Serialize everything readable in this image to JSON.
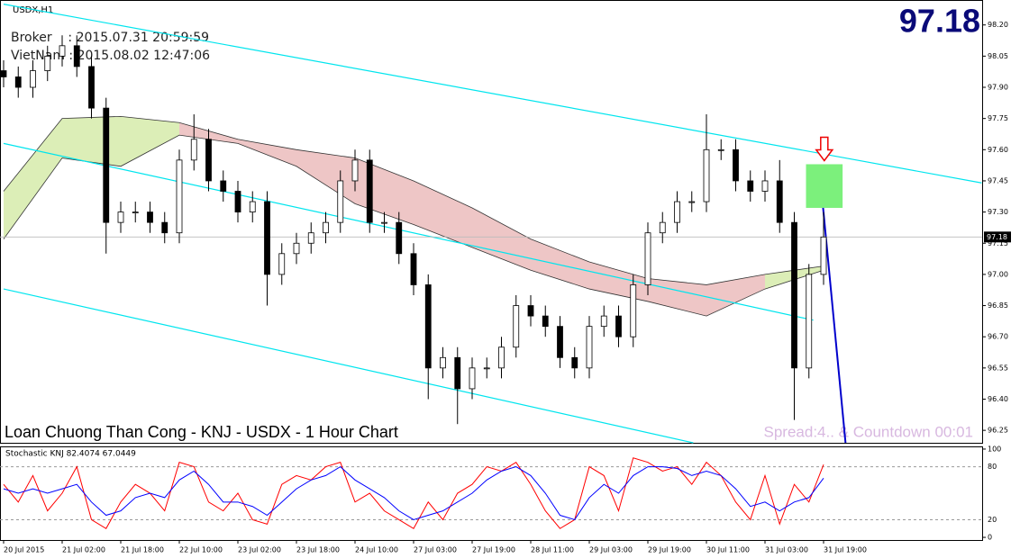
{
  "chart_data": {
    "type": "candlestick",
    "symbol": "USDX,H1",
    "broker_time": "Broker    : 2015.07.31 20:59:59",
    "local_time": "VietNam : 2015.08.02 12:47:06",
    "last_price": 97.18,
    "footer": "Loan Chuong Than Cong - KNJ - USDX - 1 Hour Chart",
    "spread_text": "Spread:4.. & Countdown 00:01",
    "up_color": "#ffffff",
    "down_color": "#000000",
    "wick_color": "#000000",
    "categories": [
      "20 Jul 2015",
      null,
      null,
      null,
      "21 Jul 02:00",
      null,
      null,
      null,
      "21 Jul 18:00",
      null,
      null,
      null,
      "22 Jul 10:00",
      null,
      null,
      null,
      "23 Jul 02:00",
      null,
      null,
      null,
      "23 Jul 18:00",
      null,
      null,
      null,
      "24 Jul 10:00",
      null,
      null,
      null,
      "27 Jul 03:00",
      null,
      null,
      null,
      "27 Jul 19:00",
      null,
      null,
      null,
      "28 Jul 11:00",
      null,
      null,
      null,
      "29 Jul 03:00",
      null,
      null,
      null,
      "29 Jul 19:00",
      null,
      null,
      null,
      "30 Jul 11:00",
      null,
      null,
      null,
      "31 Jul 03:00",
      null,
      null,
      null,
      "31 Jul 19:00"
    ],
    "open": [
      97.98,
      97.95,
      97.9,
      97.98,
      98.05,
      98.1,
      98.0,
      97.8,
      97.25,
      97.3,
      97.3,
      97.25,
      97.2,
      97.55,
      97.65,
      97.45,
      97.4,
      97.3,
      97.35,
      97.0,
      97.1,
      97.15,
      97.2,
      97.25,
      97.45,
      97.55,
      97.25,
      97.25,
      97.1,
      96.95,
      96.55,
      96.6,
      96.45,
      96.55,
      96.55,
      96.65,
      96.85,
      96.8,
      96.75,
      96.6,
      96.55,
      96.75,
      96.8,
      96.7,
      96.95,
      97.2,
      97.25,
      97.35,
      97.35,
      97.6,
      97.6,
      97.45,
      97.4,
      97.45,
      97.25,
      96.55,
      97.0
    ],
    "high": [
      98.03,
      98.0,
      98.03,
      98.1,
      98.15,
      98.15,
      98.05,
      97.85,
      97.35,
      97.35,
      97.35,
      97.3,
      97.6,
      97.77,
      97.7,
      97.5,
      97.45,
      97.4,
      97.4,
      97.15,
      97.2,
      97.25,
      97.3,
      97.5,
      97.6,
      97.6,
      97.3,
      97.3,
      97.15,
      97.0,
      96.65,
      96.65,
      96.6,
      96.6,
      96.7,
      96.9,
      96.9,
      96.85,
      96.8,
      96.65,
      96.8,
      96.85,
      96.85,
      97.0,
      97.25,
      97.3,
      97.4,
      97.4,
      97.77,
      97.65,
      97.65,
      97.5,
      97.5,
      97.55,
      97.3,
      97.05,
      97.3
    ],
    "low": [
      97.9,
      97.85,
      97.85,
      97.93,
      98.0,
      97.95,
      97.75,
      97.1,
      97.2,
      97.25,
      97.2,
      97.15,
      97.15,
      97.5,
      97.4,
      97.35,
      97.25,
      97.25,
      96.85,
      96.95,
      97.05,
      97.1,
      97.15,
      97.2,
      97.4,
      97.2,
      97.2,
      97.05,
      96.9,
      96.4,
      96.5,
      96.28,
      96.4,
      96.5,
      96.5,
      96.6,
      96.75,
      96.7,
      96.55,
      96.5,
      96.5,
      96.7,
      96.65,
      96.65,
      96.9,
      97.15,
      97.2,
      97.3,
      97.3,
      97.55,
      97.4,
      97.35,
      97.35,
      97.2,
      96.3,
      96.5,
      96.95
    ],
    "close": [
      97.95,
      97.9,
      97.98,
      98.05,
      98.1,
      98.0,
      97.8,
      97.25,
      97.3,
      97.3,
      97.25,
      97.2,
      97.55,
      97.65,
      97.45,
      97.4,
      97.3,
      97.35,
      97.0,
      97.1,
      97.15,
      97.2,
      97.25,
      97.45,
      97.55,
      97.25,
      97.25,
      97.1,
      96.95,
      96.55,
      96.6,
      96.45,
      96.55,
      96.55,
      96.65,
      96.85,
      96.8,
      96.75,
      96.6,
      96.55,
      96.75,
      96.8,
      96.7,
      96.95,
      97.2,
      97.25,
      97.35,
      97.35,
      97.6,
      97.6,
      97.45,
      97.4,
      97.45,
      97.25,
      96.55,
      97.0,
      97.18
    ],
    "ylim": [
      96.19,
      98.32
    ],
    "yticks": [
      96.25,
      {
        "value": 96.4,
        "label": "96.40"
      },
      96.55,
      {
        "value": 96.7,
        "label": "96.70"
      },
      96.85,
      {
        "value": 97.0,
        "label": "97.00"
      },
      97.15,
      {
        "value": 97.3,
        "label": "97.30"
      },
      97.45,
      {
        "value": 97.6,
        "label": "97.60"
      },
      97.75,
      {
        "value": 97.9,
        "label": "97.90"
      },
      98.05,
      {
        "value": 98.2,
        "label": "98.20"
      }
    ],
    "cloud": {
      "x": [
        0,
        4,
        8,
        12,
        16,
        20,
        24,
        28,
        32,
        36,
        40,
        44,
        48,
        52,
        56
      ],
      "upper": [
        97.4,
        97.75,
        97.76,
        97.73,
        97.65,
        97.6,
        97.56,
        97.45,
        97.32,
        97.17,
        97.06,
        96.98,
        96.95,
        97.0,
        97.04
      ],
      "lower": [
        97.17,
        97.56,
        97.52,
        97.67,
        97.63,
        97.52,
        97.34,
        97.24,
        97.13,
        97.02,
        96.93,
        96.87,
        96.8,
        96.93,
        97.02
      ],
      "colors": [
        "#9acd32",
        "#9acd32",
        "#9acd32",
        "#cd5c5c",
        "#cd5c5c",
        "#cd5c5c",
        "#cd5c5c",
        "#cd5c5c",
        "#cd5c5c",
        "#cd5c5c",
        "#cd5c5c",
        "#cd5c5c",
        "#cd5c5c",
        "#9acd32"
      ]
    },
    "lines": [
      {
        "color": "#00e5ee",
        "x": [
          0,
          66.8
        ],
        "values": [
          98.3,
          97.44
        ]
      },
      {
        "color": "#00e5ee",
        "x": [
          0,
          55.3
        ],
        "values": [
          97.63,
          96.78
        ]
      },
      {
        "color": "#00e5ee",
        "x": [
          0,
          47.1
        ],
        "values": [
          96.93,
          96.19
        ]
      },
      {
        "color": "#0000cc",
        "x": [
          55.9,
          57.5
        ],
        "values": [
          97.37,
          96.19
        ]
      }
    ],
    "signal_box": {
      "color": "#7cf07c",
      "x": [
        54.8,
        57.3
      ],
      "values": [
        97.53,
        97.32
      ]
    },
    "indicator": {
      "title": "Stochastic KNJ 82.4074 67.0449",
      "ylim": [
        -3,
        102
      ],
      "yticks": [
        0,
        20,
        80,
        100
      ],
      "series": [
        {
          "color": "#ff0000",
          "values": [
            60,
            40,
            70,
            30,
            50,
            80,
            20,
            10,
            40,
            60,
            50,
            30,
            85,
            80,
            40,
            30,
            50,
            20,
            15,
            60,
            70,
            65,
            80,
            85,
            40,
            50,
            30,
            20,
            10,
            40,
            20,
            50,
            60,
            80,
            75,
            85,
            60,
            30,
            10,
            20,
            80,
            70,
            30,
            90,
            85,
            75,
            80,
            60,
            85,
            70,
            40,
            20,
            70,
            15,
            60,
            40,
            82.41
          ]
        },
        {
          "color": "#0000ff",
          "values": [
            55,
            50,
            55,
            50,
            55,
            60,
            40,
            25,
            30,
            45,
            50,
            45,
            65,
            75,
            60,
            40,
            40,
            35,
            25,
            40,
            55,
            65,
            70,
            80,
            65,
            55,
            45,
            30,
            20,
            25,
            30,
            40,
            50,
            65,
            75,
            80,
            70,
            50,
            25,
            20,
            45,
            60,
            50,
            70,
            80,
            80,
            78,
            70,
            75,
            70,
            55,
            35,
            40,
            30,
            40,
            45,
            67.04
          ]
        }
      ]
    }
  }
}
